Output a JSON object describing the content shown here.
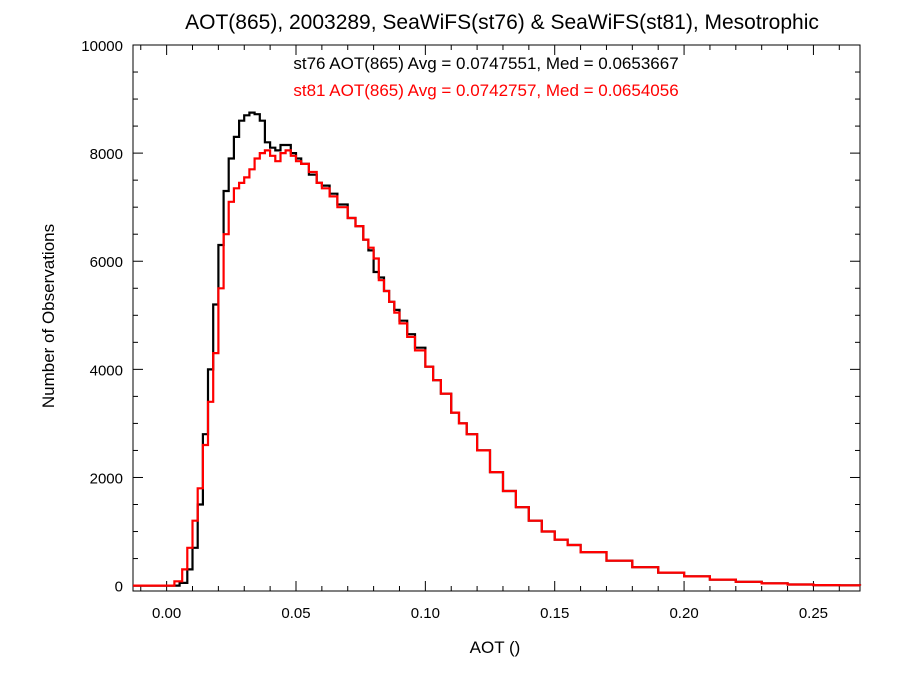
{
  "chart_data": {
    "type": "line",
    "title": "AOT(865), 2003289, SeaWiFS(st76) & SeaWiFS(st81), Mesotrophic",
    "xlabel": "AOT ()",
    "ylabel": "Number of Observations",
    "xlim": [
      -0.013,
      0.268
    ],
    "ylim": [
      -100,
      10000
    ],
    "xticks": [
      0.0,
      0.05,
      0.1,
      0.15,
      0.2,
      0.25
    ],
    "xtick_labels": [
      "0.00",
      "0.05",
      "0.10",
      "0.15",
      "0.20",
      "0.25"
    ],
    "yticks": [
      0,
      2000,
      4000,
      6000,
      8000,
      10000
    ],
    "ytick_labels": [
      "0",
      "2000",
      "4000",
      "6000",
      "8000",
      "10000"
    ],
    "grid": false,
    "legend_position": "top-center",
    "series": [
      {
        "name": "st76",
        "color": "#000000",
        "annotation": "st76 AOT(865) Avg = 0.0747551, Med = 0.0653667",
        "x": [
          -0.013,
          0.0,
          0.005,
          0.008,
          0.01,
          0.012,
          0.014,
          0.016,
          0.018,
          0.02,
          0.022,
          0.024,
          0.026,
          0.028,
          0.03,
          0.032,
          0.034,
          0.036,
          0.038,
          0.04,
          0.042,
          0.044,
          0.046,
          0.048,
          0.05,
          0.052,
          0.055,
          0.058,
          0.06,
          0.063,
          0.066,
          0.07,
          0.073,
          0.076,
          0.078,
          0.08,
          0.082,
          0.084,
          0.086,
          0.088,
          0.09,
          0.093,
          0.096,
          0.1,
          0.103,
          0.106,
          0.11,
          0.113,
          0.116,
          0.12,
          0.125,
          0.13,
          0.135,
          0.14,
          0.145,
          0.15,
          0.155,
          0.16,
          0.17,
          0.18,
          0.19,
          0.2,
          0.21,
          0.22,
          0.23,
          0.24,
          0.25,
          0.26,
          0.268
        ],
        "y": [
          0,
          0,
          50,
          300,
          700,
          1500,
          2800,
          4000,
          5200,
          6300,
          7300,
          7900,
          8300,
          8600,
          8700,
          8750,
          8720,
          8600,
          8200,
          8100,
          8050,
          8150,
          8150,
          8000,
          7900,
          7800,
          7600,
          7450,
          7400,
          7250,
          7050,
          6800,
          6650,
          6400,
          6200,
          5800,
          5700,
          5450,
          5250,
          5100,
          4900,
          4650,
          4400,
          4050,
          3800,
          3550,
          3200,
          3000,
          2800,
          2500,
          2100,
          1750,
          1450,
          1200,
          1000,
          850,
          750,
          620,
          460,
          340,
          240,
          170,
          110,
          70,
          40,
          20,
          10,
          5,
          0
        ]
      },
      {
        "name": "st81",
        "color": "#ff0000",
        "annotation": "st81 AOT(865) Avg = 0.0742757, Med = 0.0654056",
        "x": [
          -0.013,
          0.0,
          0.003,
          0.006,
          0.008,
          0.01,
          0.012,
          0.014,
          0.016,
          0.018,
          0.02,
          0.022,
          0.024,
          0.026,
          0.028,
          0.03,
          0.032,
          0.034,
          0.036,
          0.038,
          0.04,
          0.042,
          0.044,
          0.046,
          0.048,
          0.05,
          0.052,
          0.055,
          0.058,
          0.06,
          0.063,
          0.066,
          0.07,
          0.073,
          0.076,
          0.078,
          0.08,
          0.082,
          0.084,
          0.086,
          0.088,
          0.09,
          0.093,
          0.096,
          0.1,
          0.103,
          0.106,
          0.11,
          0.113,
          0.116,
          0.12,
          0.125,
          0.13,
          0.135,
          0.14,
          0.145,
          0.15,
          0.155,
          0.16,
          0.17,
          0.18,
          0.19,
          0.2,
          0.21,
          0.22,
          0.23,
          0.24,
          0.25,
          0.26,
          0.268
        ],
        "y": [
          0,
          0,
          80,
          300,
          700,
          1200,
          1800,
          2600,
          3400,
          4300,
          5500,
          6500,
          7100,
          7350,
          7450,
          7550,
          7700,
          7900,
          8000,
          8050,
          7950,
          7850,
          8000,
          8050,
          7950,
          7850,
          7800,
          7650,
          7450,
          7350,
          7200,
          7000,
          6800,
          6650,
          6400,
          6250,
          6050,
          5650,
          5450,
          5250,
          5050,
          4850,
          4600,
          4350,
          4050,
          3800,
          3550,
          3200,
          3000,
          2800,
          2500,
          2100,
          1750,
          1450,
          1200,
          1000,
          850,
          750,
          620,
          460,
          340,
          240,
          170,
          110,
          70,
          40,
          20,
          10,
          5,
          0
        ]
      }
    ]
  }
}
